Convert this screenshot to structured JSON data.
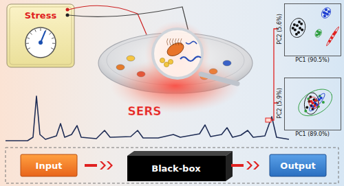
{
  "stress_label": "Stress",
  "sers_label": "SERS",
  "flow": {
    "input": "Input",
    "model": "Black-box",
    "output": "Output"
  },
  "chart_data": [
    {
      "type": "scatter",
      "xlabel": "PC1 (90.5%)",
      "ylabel": "PC2 (5.6%)",
      "xlim": [
        -4,
        4
      ],
      "ylim": [
        -3,
        3
      ],
      "tick_labels": false,
      "series": [
        {
          "color": "#111111",
          "marker": "circle",
          "x": [
            -2.2,
            -2.5,
            -1.8,
            -2.0,
            -2.6,
            -1.6,
            -2.3,
            -1.9,
            -2.8,
            -1.5
          ],
          "y": [
            0.5,
            0.0,
            0.2,
            -0.3,
            0.6,
            0.7,
            -0.5,
            0.9,
            0.2,
            0.0
          ]
        },
        {
          "color": "#1f3fd1",
          "marker": "circle",
          "x": [
            1.6,
            1.9,
            2.1,
            1.7,
            2.3,
            1.8
          ],
          "y": [
            2.0,
            2.3,
            1.8,
            1.6,
            2.1,
            1.9
          ]
        },
        {
          "color": "#2e9e3e",
          "marker": "circle",
          "x": [
            0.7,
            0.9,
            1.0,
            0.6
          ],
          "y": [
            -0.2,
            -0.5,
            -0.3,
            -0.6
          ]
        },
        {
          "color": "#e0201f",
          "marker": "circle",
          "x": [
            2.4,
            2.7,
            3.0,
            3.2
          ],
          "y": [
            -1.3,
            -0.9,
            -0.5,
            -0.3
          ]
        }
      ]
    },
    {
      "type": "scatter",
      "xlabel": "PC1 (89.0%)",
      "ylabel": "PC2 (5.9%)",
      "xlim": [
        -4,
        4
      ],
      "ylim": [
        -3,
        3
      ],
      "tick_labels": false,
      "series": [
        {
          "color": "#111111",
          "marker": "circle",
          "x": [
            -0.5,
            -0.2,
            0.2,
            -0.8,
            0.4,
            -0.3,
            0.0
          ],
          "y": [
            0.3,
            -0.2,
            0.5,
            -0.4,
            0.0,
            0.8,
            -0.6
          ]
        },
        {
          "color": "#2e9e3e",
          "marker": "circle",
          "x": [
            0.5,
            1.0,
            -1.0,
            0.8,
            -0.6,
            1.5
          ],
          "y": [
            0.4,
            0.9,
            -0.8,
            -0.3,
            0.6,
            0.2
          ]
        },
        {
          "color": "#1f3fd1",
          "marker": "circle",
          "x": [
            0.3,
            0.9,
            0.6,
            1.2,
            0.1
          ],
          "y": [
            0.2,
            0.5,
            -0.1,
            0.7,
            -0.3
          ]
        },
        {
          "color": "#e0201f",
          "marker": "circle",
          "x": [
            0.0,
            0.3,
            -0.2,
            0.4
          ],
          "y": [
            0.1,
            -0.2,
            0.3,
            0.4
          ]
        }
      ]
    }
  ]
}
